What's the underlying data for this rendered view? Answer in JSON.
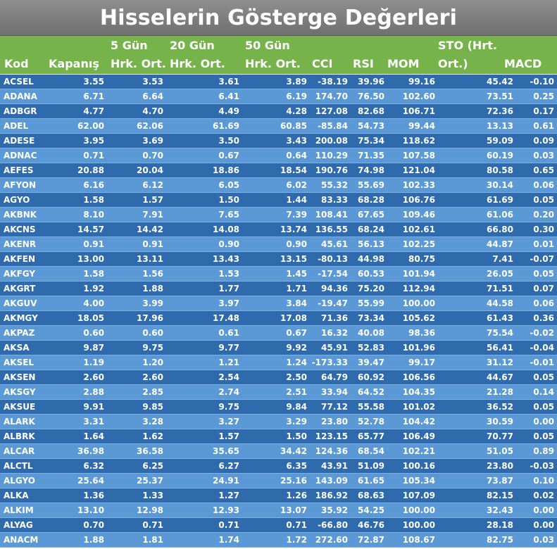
{
  "title": "Hisselerin Gösterge Değerleri",
  "headers": {
    "kod": "Kod",
    "kapanis": "Kapanış",
    "ma5_top": "5 Gün",
    "ma5_bottom": "Hrk. Ort.",
    "ma20_top": "20 Gün",
    "ma20_bottom": "Hrk. Ort.",
    "ma50_top": "50 Gün",
    "ma50_bottom": "Hrk. Ort.",
    "cci": "CCI",
    "rsi": "RSI",
    "mom": "MOM",
    "sto_top": "STO (Hrt.",
    "sto_bottom": "Ort.)",
    "macd": "MACD"
  },
  "rows": [
    [
      "ACSEL",
      "3.55",
      "3.53",
      "3.61",
      "3.89",
      "-38.19",
      "39.96",
      "99.16",
      "45.42",
      "-0.10"
    ],
    [
      "ADANA",
      "6.71",
      "6.64",
      "6.41",
      "6.19",
      "174.70",
      "76.50",
      "102.60",
      "73.51",
      "0.25"
    ],
    [
      "ADBGR",
      "4.77",
      "4.70",
      "4.49",
      "4.28",
      "127.08",
      "82.68",
      "106.71",
      "72.36",
      "0.17"
    ],
    [
      "ADEL",
      "62.00",
      "62.06",
      "61.69",
      "60.85",
      "-85.84",
      "54.73",
      "99.44",
      "13.13",
      "0.61"
    ],
    [
      "ADESE",
      "3.95",
      "3.69",
      "3.50",
      "3.43",
      "200.08",
      "75.34",
      "118.62",
      "59.09",
      "0.09"
    ],
    [
      "ADNAC",
      "0.71",
      "0.70",
      "0.67",
      "0.64",
      "110.29",
      "71.35",
      "107.58",
      "60.19",
      "0.03"
    ],
    [
      "AEFES",
      "20.88",
      "20.04",
      "18.86",
      "18.54",
      "190.76",
      "74.98",
      "121.04",
      "80.58",
      "0.65"
    ],
    [
      "AFYON",
      "6.16",
      "6.12",
      "6.05",
      "6.02",
      "55.32",
      "55.69",
      "102.33",
      "30.14",
      "0.06"
    ],
    [
      "AGYO",
      "1.58",
      "1.57",
      "1.50",
      "1.44",
      "83.33",
      "68.28",
      "106.76",
      "61.69",
      "0.05"
    ],
    [
      "AKBNK",
      "8.10",
      "7.91",
      "7.65",
      "7.39",
      "108.41",
      "67.65",
      "109.46",
      "61.06",
      "0.20"
    ],
    [
      "AKCNS",
      "14.57",
      "14.42",
      "14.08",
      "13.74",
      "136.55",
      "68.24",
      "102.61",
      "66.80",
      "0.30"
    ],
    [
      "AKENR",
      "0.91",
      "0.91",
      "0.90",
      "0.90",
      "45.61",
      "56.13",
      "102.25",
      "44.87",
      "0.01"
    ],
    [
      "AKFEN",
      "13.00",
      "13.11",
      "13.43",
      "13.15",
      "-80.13",
      "44.98",
      "80.75",
      "7.41",
      "-0.07"
    ],
    [
      "AKFGY",
      "1.58",
      "1.56",
      "1.53",
      "1.45",
      "-17.54",
      "60.53",
      "101.94",
      "26.05",
      "0.05"
    ],
    [
      "AKGRT",
      "1.92",
      "1.88",
      "1.77",
      "1.71",
      "94.36",
      "75.20",
      "112.94",
      "71.51",
      "0.07"
    ],
    [
      "AKGUV",
      "4.00",
      "3.99",
      "3.97",
      "3.84",
      "-19.47",
      "55.99",
      "100.00",
      "44.58",
      "0.06"
    ],
    [
      "AKMGY",
      "18.05",
      "17.96",
      "17.48",
      "17.08",
      "71.36",
      "73.34",
      "105.62",
      "61.43",
      "0.36"
    ],
    [
      "AKPAZ",
      "0.60",
      "0.60",
      "0.61",
      "0.67",
      "16.32",
      "40.08",
      "98.36",
      "75.54",
      "-0.02"
    ],
    [
      "AKSA",
      "9.87",
      "9.75",
      "9.77",
      "9.92",
      "45.91",
      "52.83",
      "101.96",
      "56.41",
      "-0.04"
    ],
    [
      "AKSEL",
      "1.19",
      "1.20",
      "1.21",
      "1.24",
      "-173.33",
      "39.47",
      "99.17",
      "31.12",
      "-0.01"
    ],
    [
      "AKSEN",
      "2.60",
      "2.60",
      "2.54",
      "2.50",
      "64.79",
      "60.92",
      "106.56",
      "44.67",
      "0.05"
    ],
    [
      "AKSGY",
      "2.88",
      "2.85",
      "2.74",
      "2.51",
      "33.94",
      "64.52",
      "104.35",
      "21.28",
      "0.14"
    ],
    [
      "AKSUE",
      "9.91",
      "9.85",
      "9.75",
      "9.84",
      "77.12",
      "55.58",
      "101.02",
      "36.52",
      "0.05"
    ],
    [
      "ALARK",
      "3.31",
      "3.28",
      "3.27",
      "3.29",
      "23.80",
      "52.78",
      "104.42",
      "30.59",
      "0.00"
    ],
    [
      "ALBRK",
      "1.64",
      "1.62",
      "1.57",
      "1.50",
      "123.15",
      "65.77",
      "106.49",
      "70.77",
      "0.05"
    ],
    [
      "ALCAR",
      "36.98",
      "36.58",
      "35.65",
      "34.42",
      "124.36",
      "68.54",
      "102.21",
      "51.05",
      "0.89"
    ],
    [
      "ALCTL",
      "6.32",
      "6.25",
      "6.27",
      "6.35",
      "43.91",
      "51.09",
      "100.16",
      "23.80",
      "-0.03"
    ],
    [
      "ALGYO",
      "25.64",
      "25.37",
      "24.91",
      "25.16",
      "143.09",
      "61.65",
      "105.34",
      "73.87",
      "0.10"
    ],
    [
      "ALKA",
      "1.36",
      "1.33",
      "1.27",
      "1.26",
      "186.92",
      "68.63",
      "107.09",
      "82.15",
      "0.02"
    ],
    [
      "ALKIM",
      "13.10",
      "12.98",
      "12.93",
      "13.07",
      "35.92",
      "54.25",
      "100.00",
      "32.43",
      "0.00"
    ],
    [
      "ALYAG",
      "0.70",
      "0.71",
      "0.71",
      "0.71",
      "-66.80",
      "46.76",
      "100.00",
      "28.18",
      "0.00"
    ],
    [
      "ANACM",
      "1.88",
      "1.81",
      "1.74",
      "1.72",
      "272.60",
      "72.87",
      "108.67",
      "82.75",
      "0.03"
    ]
  ]
}
